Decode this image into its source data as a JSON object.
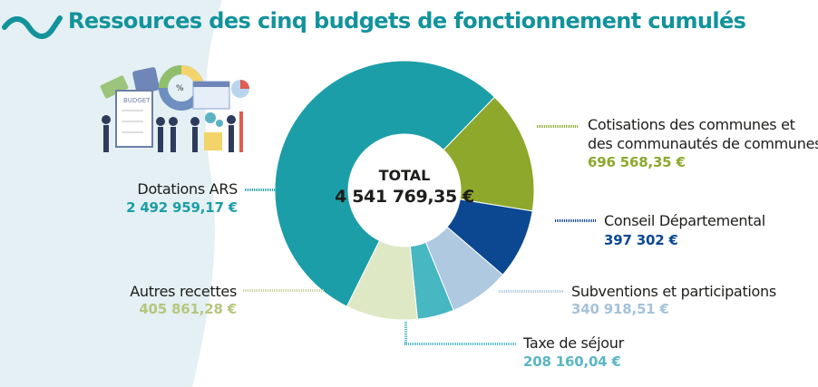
{
  "title": "Ressources des cinq budgets de fonctionnement cumulés",
  "illustration": {
    "budget_label": "BUDGET",
    "percent_symbol": "%"
  },
  "chart_data": {
    "type": "pie",
    "variant": "donut",
    "title": "Ressources des cinq budgets de fonctionnement cumulés",
    "center_label": "TOTAL",
    "total": 4541769.35,
    "total_label": "4 541 769,35 €",
    "unit": "€",
    "slices": [
      {
        "name": "Cotisations des communes et des communautés de communes",
        "line1": "Cotisations des communes et",
        "line2": "des communautés de communes",
        "value": 696568.35,
        "value_label": "696 568,35 €",
        "color": "#8da82b",
        "text_color": "#8da82b"
      },
      {
        "name": "Conseil Départemental",
        "value": 397302,
        "value_label": "397 302 €",
        "color": "#0b4891",
        "text_color": "#0b4891"
      },
      {
        "name": "Subventions et participations",
        "value": 340918.51,
        "value_label": "340 918,51 €",
        "color": "#aec9e0",
        "text_color": "#a6c2db"
      },
      {
        "name": "Taxe de séjour",
        "value": 208160.04,
        "value_label": "208 160,04 €",
        "color": "#47b7c2",
        "text_color": "#5bb6c2"
      },
      {
        "name": "Autres recettes",
        "value": 405861.28,
        "value_label": "405 861,28 €",
        "color": "#dfe8c4",
        "text_color": "#b6c67e"
      },
      {
        "name": "Dotations ARS",
        "value": 2492959.17,
        "value_label": "2 492 959,17 €",
        "color": "#1c9ea8",
        "text_color": "#1c9ea8"
      }
    ],
    "legend": "labels around chart"
  }
}
